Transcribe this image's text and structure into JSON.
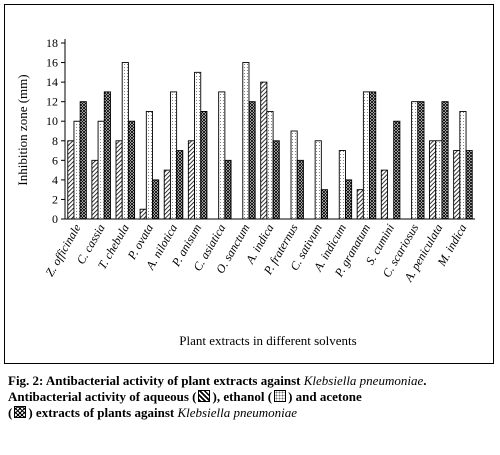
{
  "chart_data": {
    "type": "bar",
    "ylabel": "Inhibition zone (mm)",
    "xlabel": "Plant extracts in different solvents",
    "ylim": [
      0,
      18
    ],
    "yticks": [
      "0",
      "2",
      "4",
      "6",
      "8",
      "10",
      "12",
      "14",
      "16",
      "18"
    ],
    "categories": [
      "Z. officinale",
      "C. cassia",
      "T. chebula",
      "P. ovata",
      "A. nilotica",
      "P. anisum",
      "C. asiatica",
      "O. sanctum",
      "A. indica",
      "P. fraternus",
      "C. sativum",
      "A. indicum",
      "P. granatum",
      "S. cumini",
      "C. scariosus",
      "A. peniculata",
      "M. indica"
    ],
    "series": [
      {
        "pattern": "hatched",
        "values": [
          8,
          6,
          8,
          1,
          5,
          8,
          0,
          0,
          14,
          0,
          0,
          0,
          3,
          5,
          0,
          8,
          7
        ]
      },
      {
        "pattern": "dotted",
        "values": [
          10,
          10,
          16,
          11,
          13,
          15,
          13,
          16,
          11,
          9,
          8,
          7,
          13,
          0,
          12,
          8,
          11
        ]
      },
      {
        "pattern": "checkered",
        "values": [
          12,
          13,
          10,
          4,
          7,
          11,
          6,
          12,
          8,
          6,
          3,
          4,
          13,
          10,
          12,
          12,
          7
        ]
      }
    ]
  },
  "caption": {
    "fig_label": "Fig. 2: Antibacterial activity of plant extracts against ",
    "organism": "Klebsiella pneumoniae",
    "fig_end": ".",
    "line2_start": "Antibacterial activity of aqueous (",
    "line2_mid1": "), ethanol (",
    "line2_mid2": ") and acetone",
    "line3_open": "(",
    "line3_rest": ") extracts of plants against ",
    "organism2": "Klebsiella pneumoniae"
  }
}
